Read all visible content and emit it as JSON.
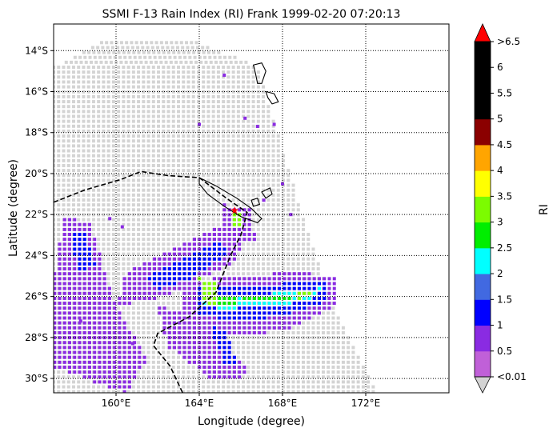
{
  "chart_data": {
    "type": "heatmap",
    "title": "SSMI F-13 Rain Index (RI) Frank 1999-02-20 07:20:13",
    "xlabel": "Longitude (degree)",
    "ylabel": "Latitude (degree)",
    "xlim": [
      157,
      176
    ],
    "ylim": [
      -30.7,
      -12.7
    ],
    "x_ticks": [
      {
        "value": 160,
        "label": "160°E"
      },
      {
        "value": 164,
        "label": "164°E"
      },
      {
        "value": 168,
        "label": "168°E"
      },
      {
        "value": 172,
        "label": "172°E"
      }
    ],
    "y_ticks": [
      {
        "value": -14,
        "label": "14°S"
      },
      {
        "value": -16,
        "label": "16°S"
      },
      {
        "value": -18,
        "label": "18°S"
      },
      {
        "value": -20,
        "label": "20°S"
      },
      {
        "value": -22,
        "label": "22°S"
      },
      {
        "value": -24,
        "label": "24°S"
      },
      {
        "value": -26,
        "label": "26°S"
      },
      {
        "value": -28,
        "label": "28°S"
      },
      {
        "value": -30,
        "label": "30°S"
      }
    ],
    "grid": true,
    "colorbar": {
      "label": "RI",
      "placement": "right",
      "colors": [
        "#c060d8",
        "#8a2be2",
        "#0000ff",
        "#4169e1",
        "#00ffff",
        "#00ee00",
        "#7cfc00",
        "#ffff00",
        "#ffa500",
        "#8b0000",
        "#000000",
        "#000000",
        "#000000"
      ],
      "tick_labels": [
        "<0.01",
        "0.5",
        "1",
        "1.5",
        "2",
        "2.5",
        "3",
        "3.5",
        "4",
        "4.5",
        "5",
        "5.5",
        "6",
        ">6.5"
      ],
      "over_color": "#ff0000",
      "under_color": "#d3d3d3"
    },
    "no_rain_color": "#d3d3d3",
    "swath": {
      "edge_lines": [
        {
          "name": "left",
          "points": [
            [
              158.8,
              -13.5
            ],
            [
              161.5,
              -13.8
            ],
            [
              164.5,
              -14.0
            ],
            [
              166.8,
              -14.8
            ]
          ]
        },
        {
          "name": "right",
          "points": [
            [
              166.8,
              -14.8
            ],
            [
              168.8,
              -21.5
            ],
            [
              170.5,
              -26.5
            ],
            [
              172.5,
              -30.7
            ]
          ]
        }
      ]
    },
    "rain_regions": [
      {
        "name": "southwest-band",
        "ri": 0.5,
        "points": [
          [
            157.5,
            -22.0
          ],
          [
            158.8,
            -22.5
          ],
          [
            160.0,
            -26.5
          ],
          [
            161.5,
            -29.0
          ],
          [
            160.5,
            -30.7
          ],
          [
            157.0,
            -29.5
          ],
          [
            157.0,
            -25.0
          ]
        ]
      },
      {
        "name": "southwest-band-core",
        "ri": 1,
        "points": [
          [
            157.8,
            -23.0
          ],
          [
            158.5,
            -22.8
          ],
          [
            159.0,
            -24.5
          ],
          [
            158.2,
            -24.8
          ]
        ]
      },
      {
        "name": "central-northwest-arm",
        "ri": 0.5,
        "points": [
          [
            160.5,
            -24.8
          ],
          [
            163.5,
            -23.3
          ],
          [
            165.5,
            -22.3
          ],
          [
            166.5,
            -22.8
          ],
          [
            165.5,
            -24.5
          ],
          [
            162.5,
            -26.0
          ],
          [
            160.0,
            -26.5
          ]
        ]
      },
      {
        "name": "central-northwest-core",
        "ri": 1,
        "points": [
          [
            161.5,
            -25.0
          ],
          [
            163.5,
            -24.0
          ],
          [
            165.0,
            -23.3
          ],
          [
            165.5,
            -23.8
          ],
          [
            163.5,
            -25.2
          ],
          [
            162.0,
            -25.7
          ]
        ]
      },
      {
        "name": "east-band",
        "ri": 0.5,
        "points": [
          [
            163.0,
            -25.3
          ],
          [
            166.0,
            -25.0
          ],
          [
            168.5,
            -24.8
          ],
          [
            170.5,
            -25.0
          ],
          [
            170.5,
            -26.5
          ],
          [
            168.5,
            -27.5
          ],
          [
            166.0,
            -28.0
          ],
          [
            163.5,
            -27.5
          ]
        ]
      },
      {
        "name": "east-band-core",
        "ri": 1,
        "points": [
          [
            163.8,
            -25.6
          ],
          [
            166.5,
            -25.6
          ],
          [
            168.5,
            -25.3
          ],
          [
            170.2,
            -25.3
          ],
          [
            170.0,
            -26.3
          ],
          [
            168.5,
            -26.8
          ],
          [
            166.0,
            -27.3
          ],
          [
            164.0,
            -26.9
          ]
        ]
      },
      {
        "name": "east-band-strong",
        "ri": 2,
        "points": [
          [
            164.2,
            -25.9
          ],
          [
            166.5,
            -26.0
          ],
          [
            168.5,
            -25.7
          ],
          [
            169.8,
            -25.6
          ],
          [
            169.5,
            -26.1
          ],
          [
            167.5,
            -26.5
          ],
          [
            165.0,
            -26.6
          ],
          [
            164.2,
            -26.5
          ]
        ]
      },
      {
        "name": "east-band-peak",
        "ri": 2.5,
        "points": [
          [
            164.5,
            -26.0
          ],
          [
            166.0,
            -26.1
          ],
          [
            168.8,
            -25.9
          ],
          [
            169.5,
            -25.8
          ],
          [
            169.4,
            -26.0
          ],
          [
            166.5,
            -26.3
          ],
          [
            164.5,
            -26.4
          ]
        ]
      },
      {
        "name": "cell-164e-26s",
        "ri": 3,
        "points": [
          [
            164.0,
            -25.1
          ],
          [
            164.7,
            -25.2
          ],
          [
            165.0,
            -26.3
          ],
          [
            164.3,
            -26.4
          ]
        ]
      },
      {
        "name": "cell-169e-26s",
        "ri": 3,
        "points": [
          [
            168.7,
            -25.8
          ],
          [
            169.3,
            -25.7
          ],
          [
            169.4,
            -26.0
          ],
          [
            168.8,
            -26.1
          ]
        ]
      },
      {
        "name": "south-spur",
        "ri": 0.5,
        "points": [
          [
            162.0,
            -26.5
          ],
          [
            164.0,
            -26.8
          ],
          [
            166.5,
            -29.8
          ],
          [
            164.8,
            -30.2
          ],
          [
            162.5,
            -28.5
          ]
        ]
      },
      {
        "name": "south-spur-core",
        "ri": 1,
        "points": [
          [
            164.5,
            -27.5
          ],
          [
            165.3,
            -27.6
          ],
          [
            165.8,
            -29.2
          ],
          [
            165.2,
            -29.3
          ]
        ]
      },
      {
        "name": "cell-new-caledonia-south",
        "ri": 0.5,
        "points": [
          [
            165.0,
            -21.5
          ],
          [
            166.5,
            -21.7
          ],
          [
            166.7,
            -23.3
          ],
          [
            165.2,
            -23.0
          ]
        ]
      },
      {
        "name": "cell-new-caledonia-south-core",
        "ri": 3,
        "points": [
          [
            165.5,
            -21.8
          ],
          [
            166.0,
            -21.9
          ],
          [
            166.1,
            -22.7
          ],
          [
            165.6,
            -22.6
          ]
        ]
      }
    ],
    "scattered_cells": [
      {
        "lon": 165.2,
        "lat": -15.2,
        "ri": 0.5
      },
      {
        "lon": 164.0,
        "lat": -17.6,
        "ri": 0.5
      },
      {
        "lon": 166.2,
        "lat": -17.3,
        "ri": 0.5
      },
      {
        "lon": 166.8,
        "lat": -17.7,
        "ri": 0.5
      },
      {
        "lon": 167.6,
        "lat": -17.6,
        "ri": 0.5
      },
      {
        "lon": 168.0,
        "lat": -20.5,
        "ri": 0.5
      },
      {
        "lon": 168.4,
        "lat": -22.0,
        "ri": 0.5
      },
      {
        "lon": 167.1,
        "lat": -21.3,
        "ri": 0.5
      },
      {
        "lon": 159.7,
        "lat": -22.2,
        "ri": 0.5
      },
      {
        "lon": 160.3,
        "lat": -22.6,
        "ri": 0.5
      },
      {
        "lon": 158.3,
        "lat": -27.2,
        "ri": 0.5
      },
      {
        "lon": 160.8,
        "lat": -28.3,
        "ri": 0.5
      }
    ],
    "coastlines": [
      {
        "name": "new-caledonia",
        "points": [
          [
            164.0,
            -20.2
          ],
          [
            164.8,
            -20.6
          ],
          [
            165.8,
            -21.2
          ],
          [
            166.5,
            -21.7
          ],
          [
            167.0,
            -22.2
          ],
          [
            166.8,
            -22.4
          ],
          [
            166.0,
            -22.1
          ],
          [
            165.2,
            -21.6
          ],
          [
            164.4,
            -21.0
          ],
          [
            164.0,
            -20.5
          ]
        ]
      },
      {
        "name": "loyalty-island-1",
        "points": [
          [
            167.0,
            -20.9
          ],
          [
            167.4,
            -20.7
          ],
          [
            167.5,
            -21.0
          ],
          [
            167.2,
            -21.2
          ]
        ]
      },
      {
        "name": "loyalty-island-2",
        "points": [
          [
            166.5,
            -21.3
          ],
          [
            166.8,
            -21.2
          ],
          [
            166.9,
            -21.5
          ],
          [
            166.6,
            -21.6
          ]
        ]
      },
      {
        "name": "vanuatu-espiritu-santo",
        "points": [
          [
            166.6,
            -14.7
          ],
          [
            167.0,
            -14.6
          ],
          [
            167.2,
            -15.0
          ],
          [
            167.0,
            -15.6
          ],
          [
            166.8,
            -15.6
          ],
          [
            166.7,
            -15.1
          ]
        ]
      },
      {
        "name": "vanuatu-malekula",
        "points": [
          [
            167.2,
            -16.0
          ],
          [
            167.6,
            -16.1
          ],
          [
            167.8,
            -16.5
          ],
          [
            167.5,
            -16.6
          ],
          [
            167.3,
            -16.3
          ]
        ]
      }
    ],
    "storm_track": {
      "color": "#000000",
      "style": "dashed",
      "points": [
        [
          157.0,
          -21.4
        ],
        [
          158.5,
          -20.8
        ],
        [
          160.2,
          -20.3
        ],
        [
          161.2,
          -19.9
        ],
        [
          162.5,
          -20.1
        ],
        [
          164.0,
          -20.2
        ],
        [
          165.3,
          -21.2
        ],
        [
          166.3,
          -21.9
        ],
        [
          166.0,
          -23.0
        ],
        [
          165.5,
          -24.0
        ],
        [
          164.8,
          -25.8
        ],
        [
          163.5,
          -27.0
        ],
        [
          162.0,
          -27.8
        ],
        [
          161.8,
          -28.4
        ],
        [
          162.6,
          -29.4
        ],
        [
          163.2,
          -30.7
        ]
      ]
    },
    "storm_center": {
      "lon": 165.7,
      "lat": -21.8,
      "marker": "star",
      "color": "#ff0000"
    }
  }
}
